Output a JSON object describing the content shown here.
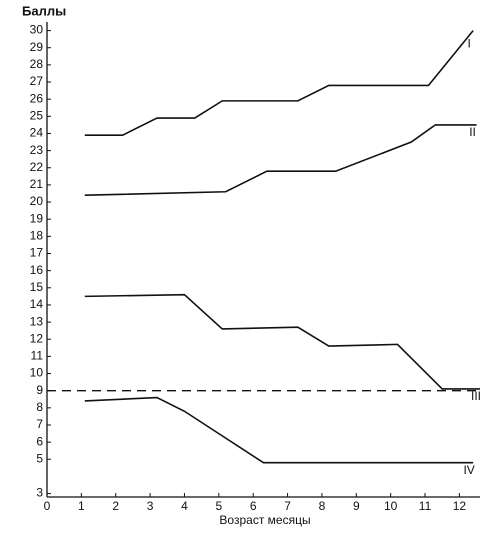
{
  "chart_data": {
    "type": "line",
    "title": "Баллы",
    "x_label": "Возраст месяцы",
    "xlim": [
      0,
      12.6
    ],
    "xticks": [
      0,
      1,
      2,
      3,
      4,
      5,
      6,
      7,
      8,
      9,
      10,
      11,
      12
    ],
    "ylim": [
      2.8,
      30.5
    ],
    "yticks": [
      3,
      5,
      6,
      7,
      8,
      9,
      10,
      11,
      12,
      13,
      14,
      15,
      16,
      17,
      18,
      19,
      20,
      21,
      22,
      23,
      24,
      25,
      26,
      27,
      28,
      29,
      30
    ],
    "reference_line": {
      "value": 9,
      "style": "dashed"
    },
    "series": [
      {
        "name": "I",
        "color": "#111111",
        "x": [
          1.1,
          2.2,
          3.2,
          4.3,
          5.1,
          7.3,
          8.2,
          11.1,
          12.4
        ],
        "values": [
          23.9,
          23.9,
          24.9,
          24.9,
          25.9,
          25.9,
          26.8,
          26.8,
          30
        ]
      },
      {
        "name": "II",
        "color": "#111111",
        "x": [
          1.1,
          5.2,
          6.4,
          8.4,
          10.6,
          11.3,
          12.5
        ],
        "values": [
          20.4,
          20.6,
          21.8,
          21.8,
          23.5,
          24.5,
          24.5
        ]
      },
      {
        "name": "III",
        "color": "#111111",
        "x": [
          1.1,
          4,
          5.1,
          7.3,
          8.2,
          10.2,
          11.5,
          12.6
        ],
        "values": [
          14.5,
          14.6,
          12.6,
          12.7,
          11.6,
          11.7,
          9.1,
          9.1
        ]
      },
      {
        "name": "IV",
        "color": "#111111",
        "x": [
          1.1,
          3.2,
          4,
          6.3,
          12.4
        ],
        "values": [
          8.4,
          8.6,
          7.8,
          4.8,
          4.8
        ]
      }
    ]
  }
}
